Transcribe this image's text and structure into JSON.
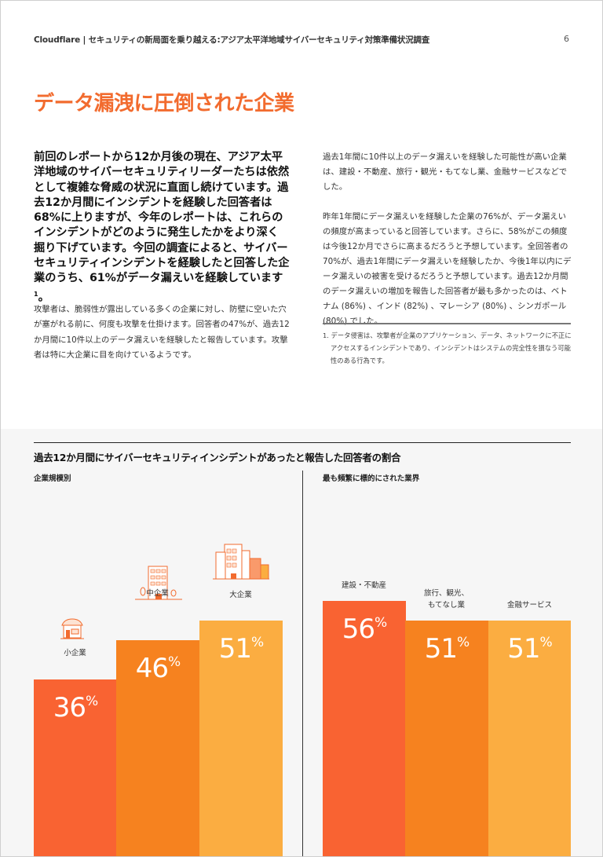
{
  "header": {
    "title": "Cloudflare | セキュリティの新局面を乗り越える:アジア太平洋地域サイバーセキュリティ対策準備状況調査",
    "page": "6"
  },
  "title": "データ漏洩に圧倒された企業",
  "lead": "前回のレポートから12か月後の現在、アジア太平洋地域のサイバーセキュリティリーダーたちは依然として複雑な脅威の状況に直面し続けています。過去12か月間にインシデントを経験した回答者は68%に上りますが、今年のレポートは、これらのインシデントがどのように発生したかをより深く掘り下げています。今回の調査によると、サイバーセキュリティインシデントを経験したと回答した企業のうち、61%がデータ漏えいを経験しています",
  "lead_sup": "1",
  "lead_end": "。",
  "para1": "攻撃者は、脆弱性が露出している多くの企業に対し、防壁に空いた穴が塞がれる前に、何度も攻撃を仕掛けます。回答者の47%が、過去12か月間に10件以上のデータ漏えいを経験したと報告しています。攻撃者は特に大企業に目を向けているようです。",
  "para2": "過去1年間に10件以上のデータ漏えいを経験した可能性が高い企業は、建設・不動産、旅行・観光・もてなし業、金融サービスなどでした。",
  "para3": "昨年1年間にデータ漏えいを経験した企業の76%が、データ漏えいの頻度が高まっていると回答しています。さらに、58%がこの頻度は今後12か月でさらに高まるだろうと予想しています。全回答者の70%が、過去1年間にデータ漏えいを経験したか、今後1年以内にデータ漏えいの被害を受けるだろうと予想しています。過去12か月間のデータ漏えいの増加を報告した回答者が最も多かったのは、ベトナム (86%) 、インド (82%) 、マレーシア (80%) 、シンガポール (80%) でした。",
  "footnote": "1. データ侵害は、攻撃者が企業のアプリケーション、データ、ネットワークに不正にアクセスするインシデントであり、インシデントはシステムの完全性を損なう可能性のある行為です。",
  "chart_data": [
    {
      "type": "bar",
      "title": "過去12か月間にサイバーセキュリティインシデントがあったと報告した回答者の割合",
      "subtitle": "企業規模別",
      "categories": [
        "小企業",
        "中企業",
        "大企業"
      ],
      "values": [
        36,
        46,
        51
      ],
      "unit": "%",
      "colors": [
        "#f96332",
        "#f6821f",
        "#fbad41"
      ]
    },
    {
      "type": "bar",
      "subtitle": "最も頻繁に標的にされた業界",
      "categories": [
        "建設・不動産",
        "旅行、観光、もてなし業",
        "金融サービス"
      ],
      "values": [
        56,
        51,
        51
      ],
      "unit": "%",
      "colors": [
        "#f96332",
        "#f6821f",
        "#fbad41"
      ]
    }
  ]
}
